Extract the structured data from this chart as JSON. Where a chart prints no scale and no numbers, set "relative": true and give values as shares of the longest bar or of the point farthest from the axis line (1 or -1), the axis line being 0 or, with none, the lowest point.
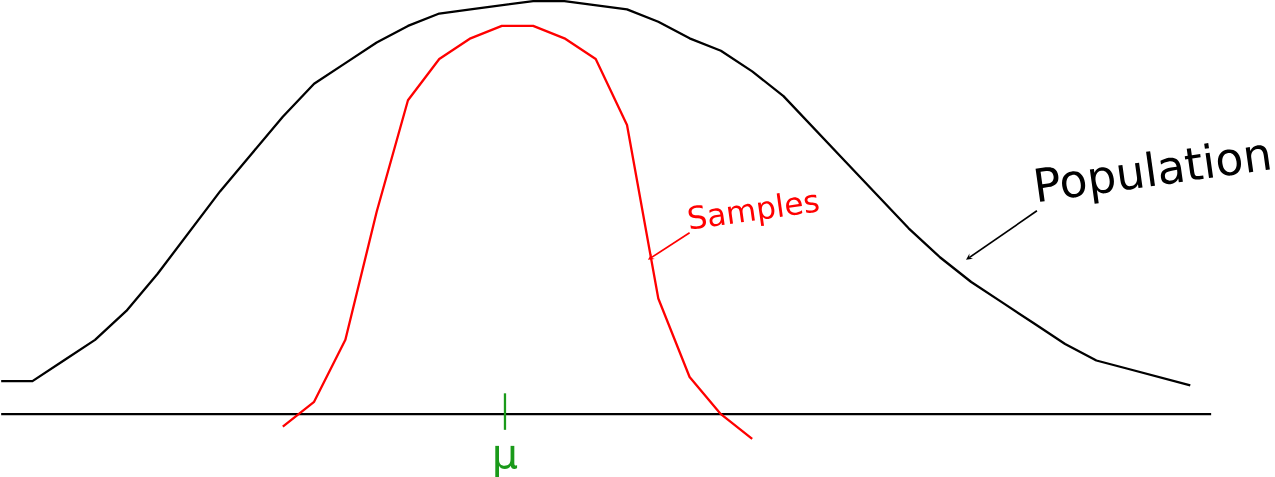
{
  "chart_data": {
    "type": "line",
    "relative": true,
    "marker": "none",
    "line_style": "solid",
    "categories": [
      null,
      null,
      null,
      null,
      null,
      null,
      null,
      null,
      null,
      null,
      null,
      null,
      null,
      null,
      null,
      null,
      null,
      null,
      null,
      null,
      null,
      null,
      null,
      null,
      null,
      null,
      null,
      null,
      null,
      null,
      null,
      null,
      null,
      null,
      null,
      null,
      null,
      null,
      null
    ],
    "series": [
      {
        "name": "Population",
        "color": "#000000",
        "values": [
          0.08,
          0.08,
          0.13,
          0.18,
          0.25,
          0.34,
          0.44,
          0.54,
          0.63,
          0.72,
          0.8,
          0.85,
          0.9,
          0.94,
          0.97,
          0.98,
          0.99,
          1.0,
          1.0,
          0.99,
          0.98,
          0.95,
          0.91,
          0.88,
          0.83,
          0.77,
          0.69,
          0.61,
          0.53,
          0.45,
          0.38,
          0.32,
          0.27,
          0.22,
          0.17,
          0.13,
          0.11,
          0.09,
          0.07
        ]
      },
      {
        "name": "Samples",
        "color": "#ff0000",
        "values": [
          null,
          null,
          null,
          null,
          null,
          null,
          null,
          null,
          null,
          -0.03,
          0.03,
          0.18,
          0.49,
          0.76,
          0.86,
          0.91,
          0.94,
          0.94,
          0.91,
          0.86,
          0.7,
          0.28,
          0.09,
          0.0,
          -0.06,
          null,
          null,
          null,
          null,
          null,
          null,
          null,
          null,
          null,
          null,
          null,
          null,
          null,
          null
        ]
      }
    ],
    "annotations": [
      "μ"
    ]
  }
}
